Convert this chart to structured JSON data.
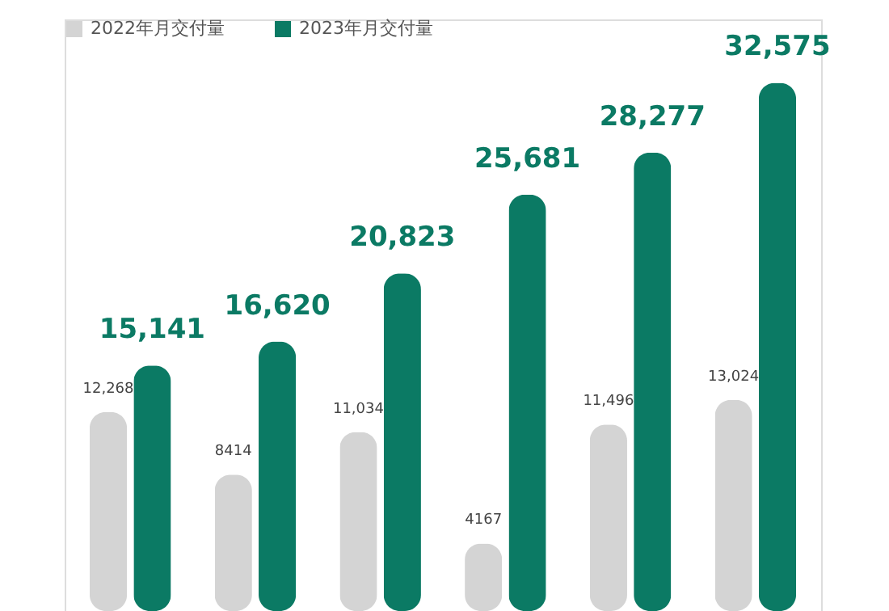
{
  "chart_data": {
    "type": "bar",
    "categories": [
      null,
      null,
      null,
      null,
      null,
      null
    ],
    "series": [
      {
        "name": "2022年月交付量",
        "color": "#d4d4d4",
        "values": [
          12268,
          8414,
          11034,
          4167,
          11496,
          13024
        ],
        "value_labels": [
          "12,268",
          "8414",
          "11,034",
          "4167",
          "11,496",
          "13,024"
        ]
      },
      {
        "name": "2023年月交付量",
        "color": "#0b7a64",
        "values": [
          15141,
          16620,
          20823,
          25681,
          28277,
          32575
        ],
        "value_labels": [
          "15,141",
          "16,620",
          "20,823",
          "25,681",
          "28,277",
          "32,575"
        ]
      }
    ],
    "legend": "top left"
  }
}
